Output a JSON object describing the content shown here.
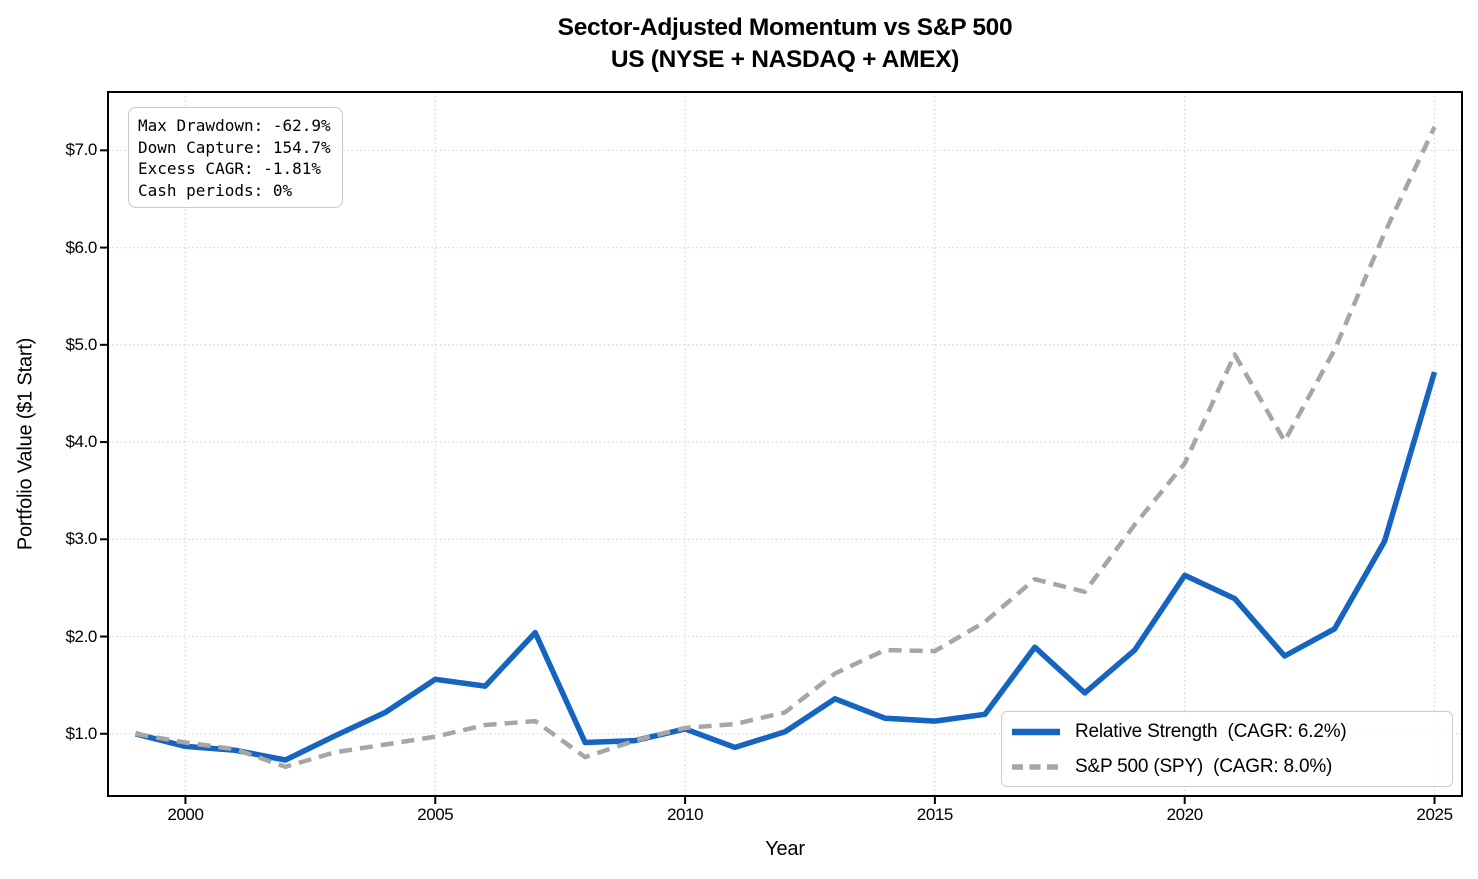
{
  "title": {
    "line1": "Sector-Adjusted Momentum vs S&P 500",
    "line2": "US (NYSE + NASDAQ + AMEX)"
  },
  "stats_box": {
    "lines": [
      "Max Drawdown: -62.9%",
      "Down Capture: 154.7%",
      "Excess CAGR: -1.81%",
      "Cash periods: 0%"
    ]
  },
  "axes": {
    "x_label": "Year",
    "y_label": "Portfolio Value ($1 Start)",
    "x_tick_labels": [
      "2000",
      "2005",
      "2010",
      "2015",
      "2020",
      "2025"
    ],
    "y_tick_labels": [
      "$1.0",
      "$2.0",
      "$3.0",
      "$4.0",
      "$5.0",
      "$6.0",
      "$7.0"
    ]
  },
  "colors": {
    "relative_strength": "#1565c0",
    "sp500": "#a6a6a6",
    "grid": "#d8d8d8",
    "spine": "#000000",
    "legend_border": "#cccccc",
    "stats_border": "#c9c9c9"
  },
  "chart_data": {
    "type": "line",
    "title": "Sector-Adjusted Momentum vs S&P 500 — US (NYSE + NASDAQ + AMEX)",
    "xlabel": "Year",
    "ylabel": "Portfolio Value ($1 Start)",
    "grid": true,
    "legend_position": "lower right",
    "xlim": [
      1998.45,
      2025.55
    ],
    "ylim": [
      0.36,
      7.6
    ],
    "x_tick_values": [
      2000,
      2005,
      2010,
      2015,
      2020,
      2025
    ],
    "y_tick_values": [
      1,
      2,
      3,
      4,
      5,
      6,
      7
    ],
    "x": [
      1999,
      2000,
      2001,
      2002,
      2003,
      2004,
      2005,
      2006,
      2007,
      2008,
      2009,
      2010,
      2011,
      2012,
      2013,
      2014,
      2015,
      2016,
      2017,
      2018,
      2019,
      2020,
      2021,
      2022,
      2023,
      2024,
      2025
    ],
    "series": [
      {
        "name": "Relative Strength",
        "legend_label": "Relative Strength  (CAGR: 6.2%)",
        "cagr": "6.2%",
        "color": "#1565c0",
        "style": "solid",
        "line_width": 5.5,
        "values": [
          1.0,
          0.87,
          0.83,
          0.73,
          0.98,
          1.22,
          1.56,
          1.49,
          2.04,
          0.91,
          0.93,
          1.05,
          0.86,
          1.02,
          1.36,
          1.16,
          1.13,
          1.2,
          1.89,
          1.42,
          1.86,
          2.63,
          2.39,
          1.8,
          2.08,
          2.98,
          4.72
        ]
      },
      {
        "name": "S&P 500 (SPY)",
        "legend_label": "S&P 500 (SPY)  (CAGR: 8.0%)",
        "cagr": "8.0%",
        "color": "#a6a6a6",
        "style": "dashed",
        "line_width": 4.5,
        "values": [
          1.0,
          0.91,
          0.84,
          0.66,
          0.81,
          0.89,
          0.97,
          1.09,
          1.13,
          0.76,
          0.93,
          1.06,
          1.1,
          1.22,
          1.62,
          1.86,
          1.85,
          2.15,
          2.59,
          2.46,
          3.15,
          3.78,
          4.9,
          4.01,
          4.95,
          6.15,
          7.24
        ]
      }
    ]
  }
}
